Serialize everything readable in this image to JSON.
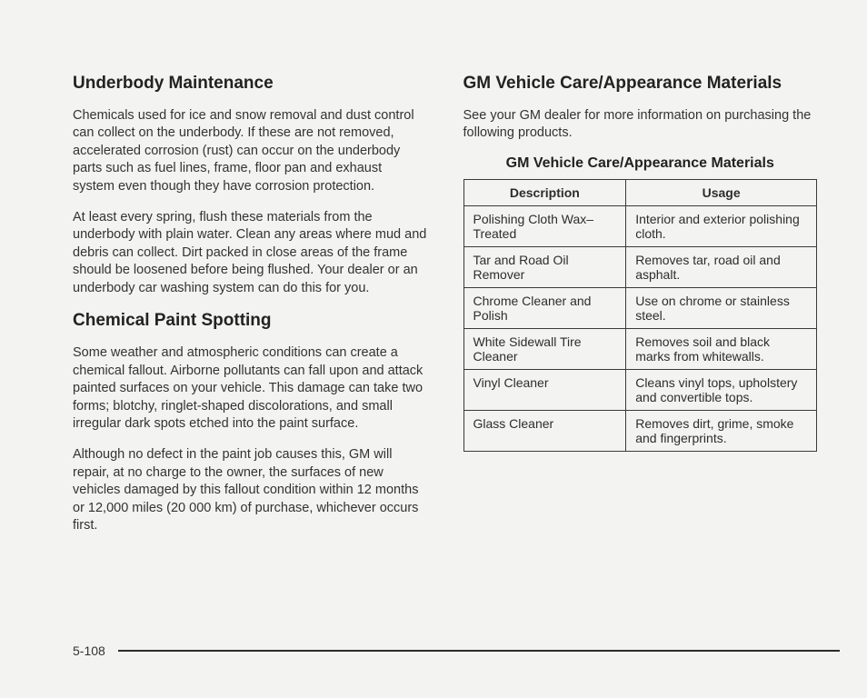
{
  "left": {
    "h1": "Underbody Maintenance",
    "p1": "Chemicals used for ice and snow removal and dust control can collect on the underbody. If these are not removed, accelerated corrosion (rust) can occur on the underbody parts such as fuel lines, frame, floor pan and exhaust system even though they have corrosion protection.",
    "p2": "At least every spring, flush these materials from the underbody with plain water. Clean any areas where mud and debris can collect. Dirt packed in close areas of the frame should be loosened before being flushed. Your dealer or an underbody car washing system can do this for you.",
    "h2": "Chemical Paint Spotting",
    "p3": "Some weather and atmospheric conditions can create a chemical fallout. Airborne pollutants can fall upon and attack painted surfaces on your vehicle. This damage can take two forms; blotchy, ringlet-shaped discolorations, and small irregular dark spots etched into the paint surface.",
    "p4": "Although no defect in the paint job causes this, GM will repair, at no charge to the owner, the surfaces of new vehicles damaged by this fallout condition within 12 months or 12,000 miles (20 000 km) of purchase, whichever occurs first."
  },
  "right": {
    "h1": "GM Vehicle Care/Appearance Materials",
    "p1": "See your GM dealer for more information on purchasing the following products.",
    "tableTitle": "GM Vehicle Care/Appearance Materials",
    "th1": "Description",
    "th2": "Usage",
    "rows": [
      {
        "d": "Polishing Cloth Wax–Treated",
        "u": "Interior and exterior polishing cloth."
      },
      {
        "d": "Tar and Road Oil Remover",
        "u": "Removes tar, road oil and asphalt."
      },
      {
        "d": "Chrome Cleaner and Polish",
        "u": "Use on chrome or stainless steel."
      },
      {
        "d": "White Sidewall Tire Cleaner",
        "u": "Removes soil and black marks from whitewalls."
      },
      {
        "d": "Vinyl Cleaner",
        "u": "Cleans vinyl tops, upholstery and convertible tops."
      },
      {
        "d": "Glass Cleaner",
        "u": "Removes dirt, grime, smoke and fingerprints."
      }
    ]
  },
  "pageNumber": "5-108",
  "style": {
    "page_bg": "#f3f3f1",
    "text_color": "#2d2d2d",
    "heading_fontsize_pt": 14,
    "body_fontsize_pt": 11,
    "table_border_color": "#3a3a3a",
    "rule_color": "#2b2b2b"
  }
}
